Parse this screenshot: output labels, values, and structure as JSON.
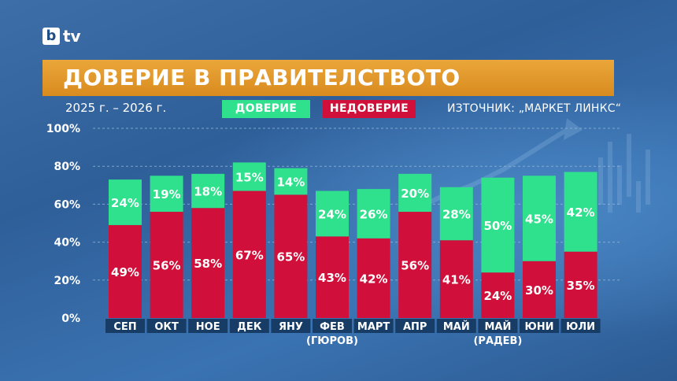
{
  "brand": {
    "logo_letter": "b",
    "logo_text": "tv"
  },
  "title": "ДОВЕРИЕ В ПРАВИТЕЛСТВОТО",
  "period": "2025 г. – 2026 г.",
  "source": "ИЗТОЧНИК: „МАРКЕТ ЛИНКС“",
  "colors": {
    "trust": "#2fe08d",
    "distrust": "#d0103a",
    "title_bar": "#e39a2c",
    "category_box": "#173c66",
    "background": "#3a6da8"
  },
  "chart_data": {
    "type": "bar",
    "stacked": true,
    "categories": [
      "СЕП",
      "ОКТ",
      "НОЕ",
      "ДЕК",
      "ЯНУ",
      "ФЕВ",
      "МАРТ",
      "АПР",
      "МАЙ",
      "МАЙ",
      "ЮНИ",
      "ЮЛИ"
    ],
    "category_sublabels": [
      "",
      "",
      "",
      "",
      "",
      "(ГЮРОВ)",
      "",
      "",
      "",
      "(РАДЕВ)",
      "",
      ""
    ],
    "series": [
      {
        "name": "НЕДОВЕРИЕ",
        "color": "#d0103a",
        "values": [
          49,
          56,
          58,
          67,
          65,
          43,
          42,
          56,
          41,
          24,
          30,
          35
        ]
      },
      {
        "name": "ДОВЕРИЕ",
        "color": "#2fe08d",
        "values": [
          24,
          19,
          18,
          15,
          14,
          24,
          26,
          20,
          28,
          50,
          45,
          42
        ]
      }
    ],
    "ylim": [
      0,
      100
    ],
    "yticks": [
      "0%",
      "20%",
      "40%",
      "60%",
      "80%",
      "100%"
    ],
    "grid": true,
    "legend_position": "top"
  }
}
